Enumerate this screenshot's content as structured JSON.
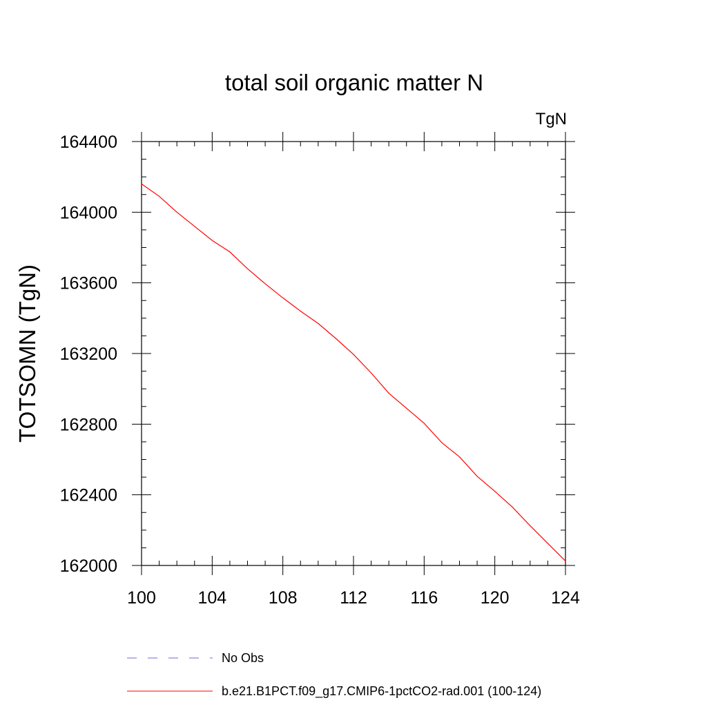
{
  "chart_data": {
    "type": "line",
    "title": "total soil organic matter N",
    "units_label": "TgN",
    "ylabel": "TOTSOMN  (TgN)",
    "xlabel": "",
    "xlim": [
      100,
      124
    ],
    "ylim": [
      162000,
      164400
    ],
    "x_ticks": [
      100,
      104,
      108,
      112,
      116,
      120,
      124
    ],
    "x_tick_labels": [
      "100",
      "104",
      "108",
      "112",
      "116",
      "120",
      "124"
    ],
    "y_ticks": [
      162000,
      162400,
      162800,
      163200,
      163600,
      164000,
      164400
    ],
    "y_tick_labels": [
      "162000",
      "162400",
      "162800",
      "163200",
      "163600",
      "164000",
      "164400"
    ],
    "grid": false,
    "legend_position": "bottom",
    "series": [
      {
        "name": "No Obs",
        "style": "dashed",
        "color": "#6a6ad0",
        "x": [],
        "y": []
      },
      {
        "name": "b.e21.B1PCT.f09_g17.CMIP6-1pctCO2-rad.001 (100-124)",
        "style": "solid",
        "color": "#ff0000",
        "x": [
          100,
          101,
          102,
          103,
          104,
          105,
          106,
          107,
          108,
          109,
          110,
          111,
          112,
          113,
          114,
          115,
          116,
          117,
          118,
          119,
          120,
          121,
          122,
          123,
          124
        ],
        "y": [
          164160,
          164090,
          164000,
          163920,
          163840,
          163775,
          163680,
          163595,
          163515,
          163440,
          163370,
          163285,
          163195,
          163090,
          162975,
          162890,
          162805,
          162695,
          162615,
          162505,
          162420,
          162330,
          162225,
          162125,
          162025
        ]
      }
    ]
  }
}
